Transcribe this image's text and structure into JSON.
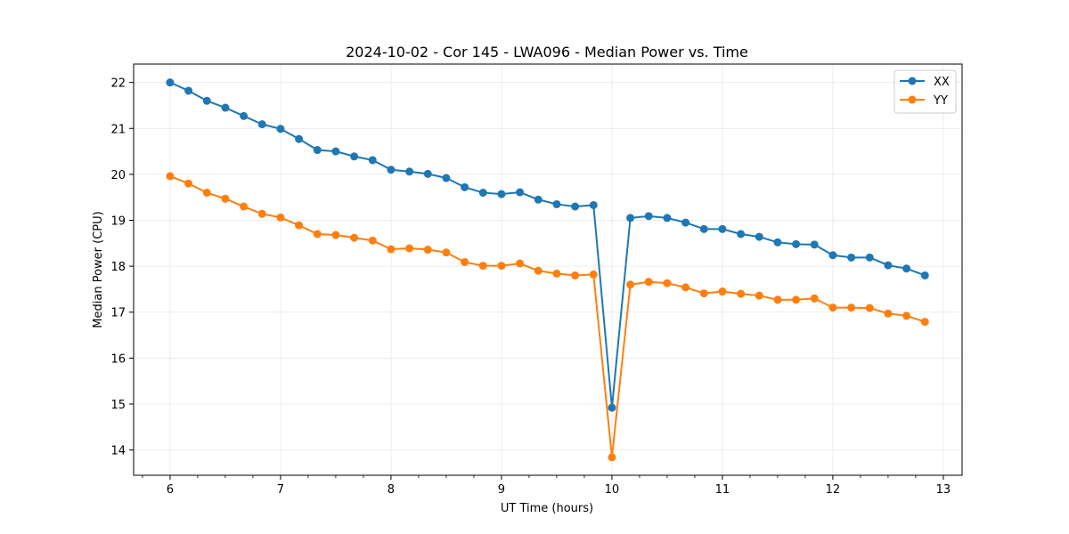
{
  "chart_data": {
    "type": "line",
    "title": "2024-10-02 - Cor 145 - LWA096 - Median Power vs. Time",
    "xlabel": "UT Time (hours)",
    "ylabel": "Median Power (CPU)",
    "xlim": [
      5.67,
      13.17
    ],
    "ylim": [
      13.45,
      22.4
    ],
    "xticks": [
      6,
      7,
      8,
      9,
      10,
      11,
      12,
      13
    ],
    "yticks": [
      14,
      15,
      16,
      17,
      18,
      19,
      20,
      21,
      22
    ],
    "grid": true,
    "legend_position": "top-right",
    "x": [
      6.0,
      6.1667,
      6.3333,
      6.5,
      6.6667,
      6.8333,
      7.0,
      7.1667,
      7.3333,
      7.5,
      7.6667,
      7.8333,
      8.0,
      8.1667,
      8.3333,
      8.5,
      8.6667,
      8.8333,
      9.0,
      9.1667,
      9.3333,
      9.5,
      9.6667,
      9.8333,
      10.0,
      10.1667,
      10.3333,
      10.5,
      10.6667,
      10.8333,
      11.0,
      11.1667,
      11.3333,
      11.5,
      11.6667,
      11.8333,
      12.0,
      12.1667,
      12.3333,
      12.5,
      12.6667,
      12.8333
    ],
    "series": [
      {
        "name": "XX",
        "color": "#1f77b4",
        "values": [
          22.0,
          21.82,
          21.6,
          21.45,
          21.27,
          21.09,
          20.99,
          20.77,
          20.53,
          20.5,
          20.39,
          20.31,
          20.1,
          20.06,
          20.01,
          19.92,
          19.72,
          19.6,
          19.57,
          19.61,
          19.45,
          19.35,
          19.3,
          19.33,
          14.92,
          19.05,
          19.09,
          19.05,
          18.95,
          18.81,
          18.81,
          18.7,
          18.64,
          18.52,
          18.48,
          18.47,
          18.24,
          18.19,
          18.19,
          18.02,
          17.95,
          17.8
        ]
      },
      {
        "name": "YY",
        "color": "#ff7f0e",
        "values": [
          19.96,
          19.8,
          19.6,
          19.47,
          19.3,
          19.14,
          19.06,
          18.89,
          18.7,
          18.68,
          18.62,
          18.56,
          18.37,
          18.39,
          18.36,
          18.3,
          18.09,
          18.01,
          18.01,
          18.06,
          17.9,
          17.84,
          17.8,
          17.82,
          13.84,
          17.6,
          17.66,
          17.63,
          17.54,
          17.41,
          17.45,
          17.4,
          17.36,
          17.27,
          17.27,
          17.3,
          17.1,
          17.1,
          17.09,
          16.97,
          16.92,
          16.79
        ]
      }
    ]
  }
}
